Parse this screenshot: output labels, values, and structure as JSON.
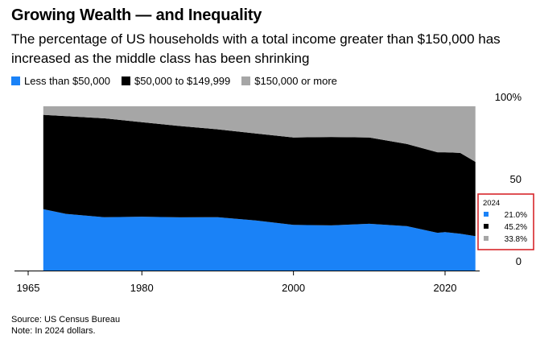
{
  "title": "Growing Wealth — and Inequality",
  "subtitle": "The percentage of US households with a total income greater than $150,000 has increased as the middle class has been shrinking",
  "source": "Source: US Census Bureau",
  "note": "Note: In 2024 dollars.",
  "colors": {
    "low": "#1a82f7",
    "middle": "#000000",
    "high": "#a6a6a6",
    "highlight_box": "#d7262b"
  },
  "chart_data": {
    "type": "area",
    "stacked": true,
    "title": "Growing Wealth — and Inequality",
    "xlabel": "",
    "ylabel": "",
    "x": [
      1967,
      1970,
      1975,
      1980,
      1985,
      1990,
      1995,
      2000,
      2005,
      2010,
      2015,
      2019,
      2020,
      2022,
      2024
    ],
    "xlim": [
      1965,
      2025
    ],
    "xticks": [
      "1965",
      "1980",
      "2000",
      "2020"
    ],
    "ylim": [
      0,
      100
    ],
    "yticks": [
      "100%",
      "50",
      "0"
    ],
    "series": [
      {
        "name": "Less than $50,000",
        "values": [
          37.4,
          34.5,
          32.5,
          32.8,
          32.4,
          32.5,
          30.5,
          27.8,
          27.5,
          28.5,
          27.0,
          23.0,
          23.4,
          22.4,
          21.0
        ]
      },
      {
        "name": "$50,000 to $149,999",
        "values": [
          57.4,
          59.5,
          60.2,
          57.5,
          55.6,
          53.5,
          53.0,
          53.2,
          53.8,
          52.5,
          50.0,
          49.0,
          48.6,
          49.2,
          45.2
        ]
      },
      {
        "name": "$150,000 or more",
        "values": [
          5.2,
          6.0,
          7.3,
          9.7,
          12.0,
          14.0,
          16.5,
          19.0,
          18.7,
          19.0,
          23.0,
          28.0,
          28.0,
          28.4,
          33.8
        ]
      }
    ],
    "legend": [
      "Less than $50,000",
      "$50,000 to $149,999",
      "$150,000 or more"
    ],
    "legend_position": "top",
    "annotation": {
      "year": "2024",
      "values": [
        "21.0%",
        "45.2%",
        "33.8%"
      ]
    }
  }
}
